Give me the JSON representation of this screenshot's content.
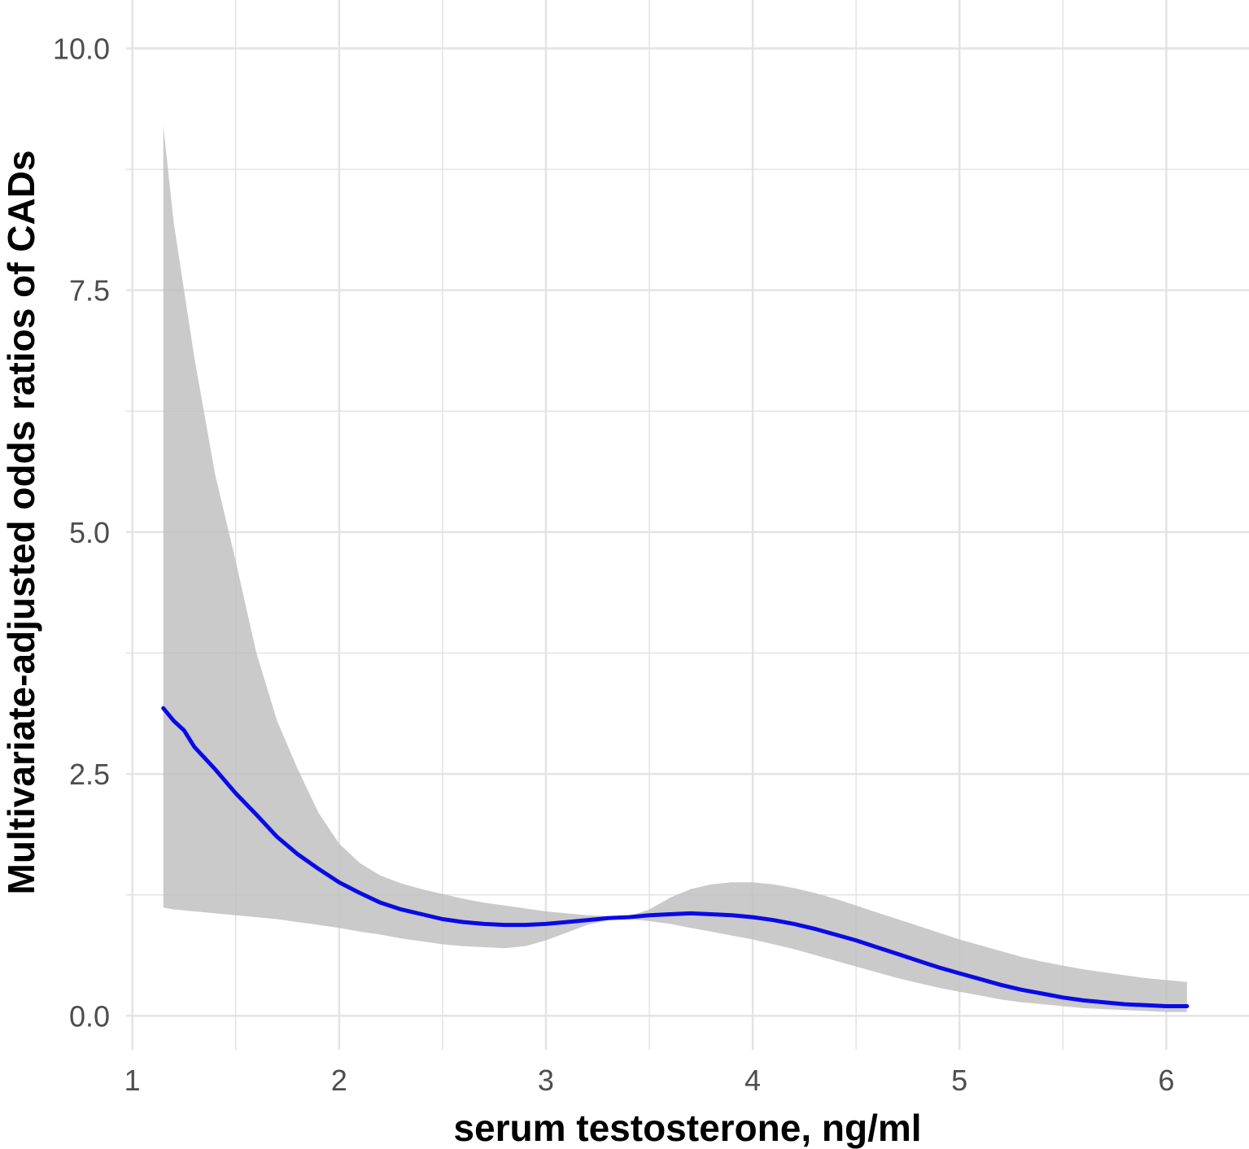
{
  "chart_data": {
    "type": "line",
    "xlabel": "serum testosterone, ng/ml",
    "ylabel": "Multivariate-adjusted odds ratios of CADs",
    "xlim": [
      0.97,
      6.4
    ],
    "ylim": [
      -0.35,
      10.5
    ],
    "x_ticks": [
      1,
      2,
      3,
      4,
      5,
      6
    ],
    "x_tick_labels": [
      "1",
      "2",
      "3",
      "4",
      "5",
      "6"
    ],
    "y_ticks": [
      0.0,
      2.5,
      5.0,
      7.5,
      10.0
    ],
    "y_tick_labels": [
      "0.0",
      "2.5",
      "5.0",
      "7.5",
      "10.0"
    ],
    "x_minor_ticks": [
      1.5,
      2.5,
      3.5,
      4.5,
      5.5
    ],
    "y_minor_ticks": [
      1.25,
      3.75,
      6.25,
      8.75
    ],
    "grid": true,
    "colors": {
      "line": "#0a0ae6",
      "ribbon": "#bdbdbd",
      "grid": "#e3e3e3"
    },
    "series": [
      {
        "x": [
          1.15,
          1.2,
          1.25,
          1.3,
          1.4,
          1.5,
          1.6,
          1.7,
          1.8,
          1.9,
          2.0,
          2.1,
          2.2,
          2.3,
          2.4,
          2.5,
          2.6,
          2.7,
          2.8,
          2.9,
          3.0,
          3.1,
          3.2,
          3.3,
          3.4,
          3.5,
          3.6,
          3.7,
          3.8,
          3.9,
          4.0,
          4.1,
          4.2,
          4.3,
          4.4,
          4.5,
          4.6,
          4.7,
          4.8,
          4.9,
          5.0,
          5.1,
          5.2,
          5.3,
          5.4,
          5.5,
          5.6,
          5.7,
          5.8,
          5.9,
          6.0,
          6.1
        ],
        "y": [
          3.18,
          3.05,
          2.95,
          2.78,
          2.55,
          2.3,
          2.08,
          1.85,
          1.67,
          1.52,
          1.38,
          1.27,
          1.17,
          1.1,
          1.05,
          1.0,
          0.97,
          0.95,
          0.94,
          0.94,
          0.95,
          0.97,
          0.99,
          1.01,
          1.02,
          1.04,
          1.05,
          1.06,
          1.05,
          1.04,
          1.02,
          0.99,
          0.95,
          0.9,
          0.84,
          0.78,
          0.71,
          0.64,
          0.57,
          0.5,
          0.44,
          0.38,
          0.32,
          0.27,
          0.23,
          0.19,
          0.16,
          0.14,
          0.12,
          0.11,
          0.1,
          0.1
        ],
        "lower": [
          1.12,
          1.1,
          1.09,
          1.08,
          1.06,
          1.04,
          1.02,
          1.0,
          0.97,
          0.94,
          0.91,
          0.87,
          0.84,
          0.8,
          0.77,
          0.74,
          0.72,
          0.71,
          0.7,
          0.72,
          0.78,
          0.86,
          0.94,
          0.99,
          1.0,
          0.98,
          0.95,
          0.91,
          0.87,
          0.83,
          0.79,
          0.74,
          0.69,
          0.63,
          0.57,
          0.51,
          0.45,
          0.39,
          0.34,
          0.29,
          0.25,
          0.21,
          0.17,
          0.14,
          0.12,
          0.1,
          0.08,
          0.07,
          0.06,
          0.05,
          0.04,
          0.04
        ],
        "upper": [
          9.2,
          8.2,
          7.5,
          6.8,
          5.6,
          4.7,
          3.75,
          3.05,
          2.55,
          2.1,
          1.78,
          1.58,
          1.45,
          1.37,
          1.31,
          1.26,
          1.21,
          1.17,
          1.14,
          1.11,
          1.08,
          1.06,
          1.04,
          1.03,
          1.03,
          1.1,
          1.22,
          1.31,
          1.36,
          1.38,
          1.38,
          1.36,
          1.32,
          1.27,
          1.21,
          1.14,
          1.07,
          1.0,
          0.93,
          0.86,
          0.79,
          0.73,
          0.67,
          0.61,
          0.56,
          0.52,
          0.48,
          0.45,
          0.42,
          0.39,
          0.37,
          0.35
        ]
      }
    ]
  }
}
